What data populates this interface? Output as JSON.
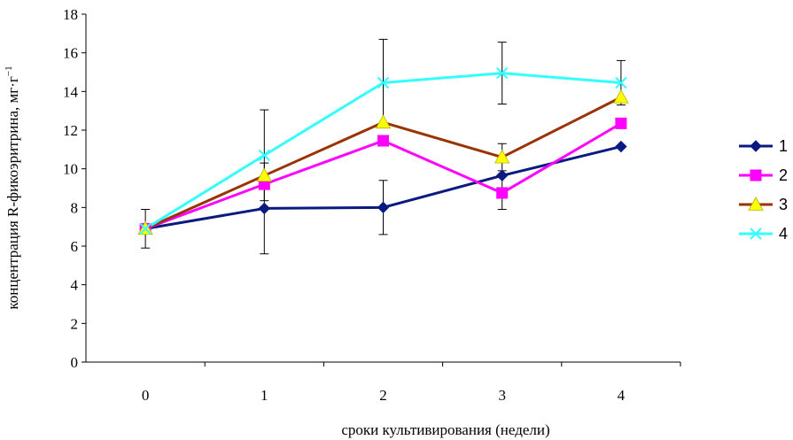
{
  "chart_data": {
    "type": "line",
    "title": "",
    "xlabel": "сроки культивирования (недели)",
    "ylabel_main": "концентрация R-фикоэритрина, мг·г",
    "ylabel_sup": "−1",
    "x": [
      0,
      1,
      2,
      3,
      4
    ],
    "x_tick_labels": [
      "0",
      "1",
      "2",
      "3",
      "4"
    ],
    "ylim": [
      0,
      18
    ],
    "y_ticks": [
      0,
      2,
      4,
      6,
      8,
      10,
      12,
      14,
      16,
      18
    ],
    "y_tick_labels": [
      "0",
      "2",
      "4",
      "6",
      "8",
      "10",
      "12",
      "14",
      "16",
      "18"
    ],
    "grid": false,
    "legend_position": "right",
    "series": [
      {
        "name": "1",
        "color": "#0a1a80",
        "marker": "diamond",
        "values": [
          6.9,
          7.95,
          8.0,
          9.65,
          11.15
        ],
        "errors": [
          1.0,
          2.35,
          1.4,
          null,
          null
        ]
      },
      {
        "name": "2",
        "color": "#ff00ff",
        "marker": "square",
        "values": [
          6.9,
          9.2,
          11.45,
          8.75,
          12.35
        ],
        "errors": [
          null,
          null,
          null,
          0.85,
          null
        ]
      },
      {
        "name": "3",
        "color": "#993300",
        "marker": "triangle",
        "values": [
          6.9,
          9.65,
          12.4,
          10.6,
          13.7
        ],
        "errors": [
          null,
          null,
          null,
          0.7,
          null
        ]
      },
      {
        "name": "4",
        "color": "#33ffff",
        "marker": "x",
        "values": [
          6.9,
          10.7,
          14.45,
          14.95,
          14.45
        ],
        "errors": [
          null,
          2.35,
          2.25,
          1.6,
          1.15
        ]
      }
    ]
  }
}
